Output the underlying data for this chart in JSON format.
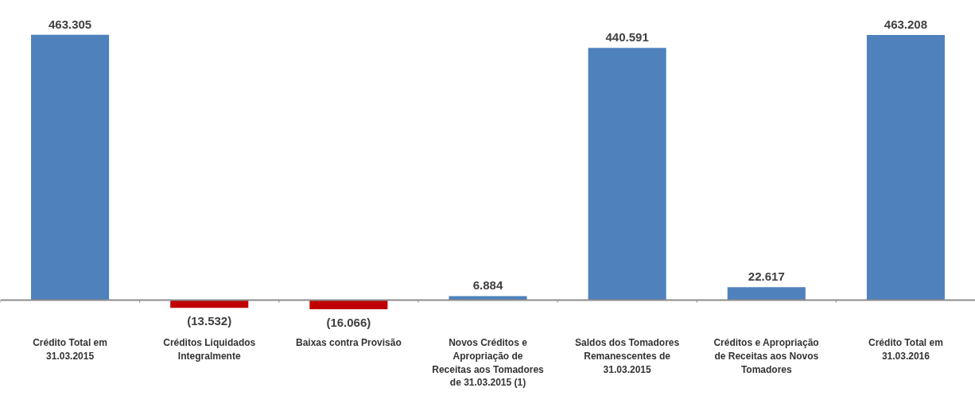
{
  "chart_data": {
    "type": "bar",
    "categories": [
      "Crédito Total em 31.03.2015",
      "Créditos Liquidados Integralmente",
      "Baixas contra Provisão",
      "Novos Créditos e Apropriação de Receitas aos Tomadores de 31.03.2015 (1)",
      "Saldos dos Tomadores Remanescentes de 31.03.2015",
      "Créditos e Apropriação de Receitas aos Novos Tomadores",
      "Crédito Total em 31.03.2016"
    ],
    "values": [
      463305,
      -13532,
      -16066,
      6884,
      440591,
      22617,
      463208
    ],
    "colors": [
      "#4f81bd",
      "#c00000",
      "#c00000",
      "#4f81bd",
      "#4f81bd",
      "#4f81bd",
      "#4f81bd"
    ],
    "value_labels": [
      "463.305",
      "(13.532)",
      "(16.066)",
      "6.884",
      "440.591",
      "22.617",
      "463.208"
    ]
  }
}
